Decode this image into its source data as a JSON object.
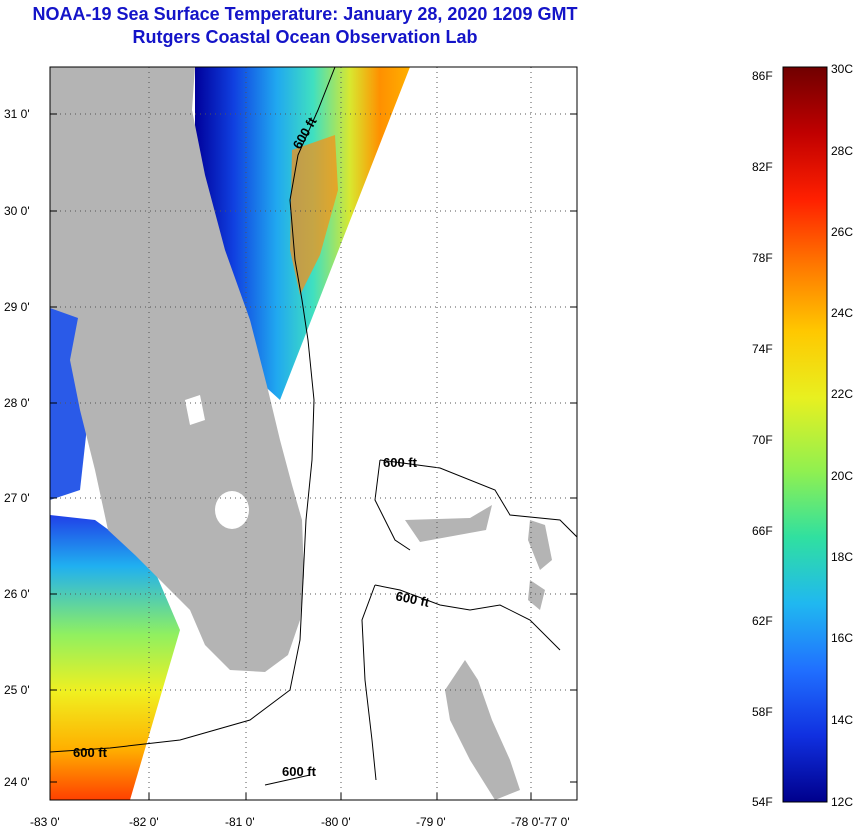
{
  "header": {
    "title": "NOAA-19 Sea Surface Temperature:  January 28, 2020 1209 GMT",
    "subtitle": "Rutgers Coastal Ocean Observation Lab"
  },
  "map": {
    "lon_labels": [
      "-83 0'",
      "-82 0'",
      "-81 0'",
      "-80 0'",
      "-79 0'",
      "-78 0'",
      "-77 0'"
    ],
    "lat_labels": [
      "24 0'",
      "25 0'",
      "26 0'",
      "27 0'",
      "28 0'",
      "29 0'",
      "30 0'",
      "31 0'"
    ],
    "isobath_labels": [
      "600 ft",
      "600 ft",
      "600 ft",
      "600 ft",
      "600 ft"
    ],
    "land_color": "#b4b4b4",
    "ocean_color": "#ffffff"
  },
  "colorbar": {
    "f_labels": [
      "86F",
      "82F",
      "78F",
      "74F",
      "70F",
      "66F",
      "62F",
      "58F",
      "54F"
    ],
    "c_labels": [
      "30C",
      "28C",
      "26C",
      "24C",
      "22C",
      "20C",
      "18C",
      "16C",
      "14C",
      "12C"
    ],
    "colors": [
      "#700000",
      "#c00000",
      "#ff2000",
      "#ff7800",
      "#ffc800",
      "#e8f020",
      "#90f050",
      "#30e0a0",
      "#20b8f0",
      "#2070ff",
      "#1030e0",
      "#00008c"
    ]
  }
}
